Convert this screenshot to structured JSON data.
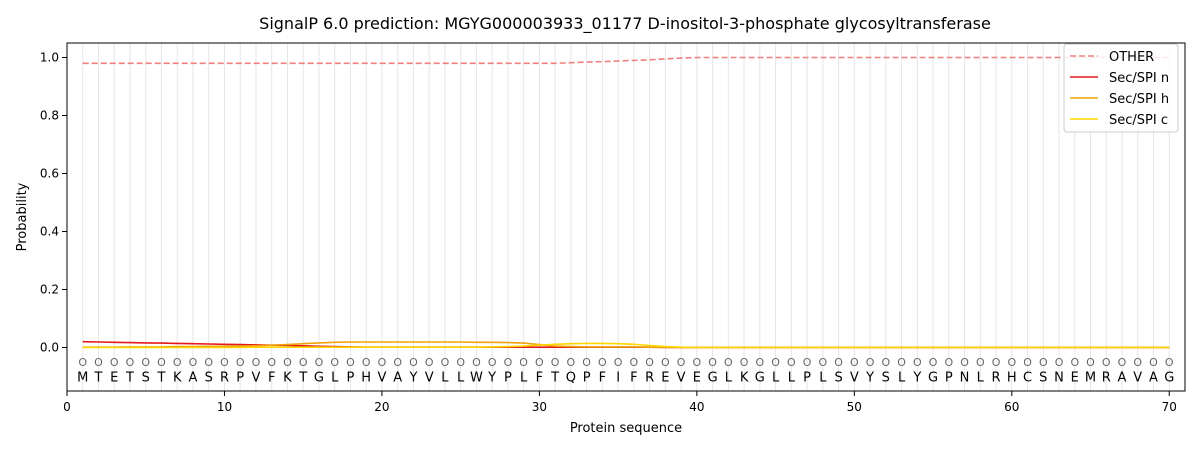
{
  "chart_data": {
    "type": "line",
    "title": "SignalP 6.0 prediction: MGYG000003933_01177 D-inositol-3-phosphate glycosyltransferase",
    "xlabel": "Protein sequence",
    "ylabel": "Probability",
    "xlim": [
      0,
      71
    ],
    "ylim": [
      -0.15,
      1.05
    ],
    "xticks": [
      0,
      10,
      20,
      30,
      40,
      50,
      60,
      70
    ],
    "yticks": [
      0.0,
      0.2,
      0.4,
      0.6,
      0.8,
      1.0
    ],
    "ytick_labels": [
      "0.0",
      "0.2",
      "0.4",
      "0.6",
      "0.8",
      "1.0"
    ],
    "grid": "vertical lines at each residue",
    "legend_position": "top-right",
    "sequence": [
      "M",
      "T",
      "E",
      "T",
      "S",
      "T",
      "K",
      "A",
      "S",
      "R",
      "P",
      "V",
      "F",
      "K",
      "T",
      "G",
      "L",
      "P",
      "H",
      "V",
      "A",
      "Y",
      "V",
      "L",
      "L",
      "W",
      "Y",
      "P",
      "L",
      "F",
      "T",
      "Q",
      "P",
      "F",
      "I",
      "F",
      "R",
      "E",
      "V",
      "E",
      "G",
      "L",
      "K",
      "G",
      "L",
      "L",
      "P",
      "L",
      "S",
      "V",
      "Y",
      "S",
      "L",
      "Y",
      "G",
      "P",
      "N",
      "L",
      "R",
      "H",
      "C",
      "S",
      "N",
      "E",
      "M",
      "R",
      "A",
      "V",
      "A",
      "G"
    ],
    "region_label": "O",
    "series": [
      {
        "name": "OTHER",
        "color": "#f08080",
        "dashed": true,
        "values": [
          0.98,
          0.98,
          0.98,
          0.98,
          0.98,
          0.98,
          0.98,
          0.98,
          0.98,
          0.98,
          0.98,
          0.98,
          0.98,
          0.98,
          0.98,
          0.98,
          0.98,
          0.98,
          0.98,
          0.98,
          0.98,
          0.98,
          0.98,
          0.98,
          0.98,
          0.98,
          0.98,
          0.98,
          0.98,
          0.98,
          0.98,
          0.982,
          0.984,
          0.986,
          0.988,
          0.99,
          0.992,
          0.995,
          0.998,
          1.0,
          1.0,
          1.0,
          1.0,
          1.0,
          1.0,
          1.0,
          1.0,
          1.0,
          1.0,
          1.0,
          1.0,
          1.0,
          1.0,
          1.0,
          1.0,
          1.0,
          1.0,
          1.0,
          1.0,
          1.0,
          1.0,
          1.0,
          1.0,
          1.0,
          1.0,
          1.0,
          1.0,
          1.0,
          1.0,
          1.0
        ]
      },
      {
        "name": "Sec/SPI n",
        "color": "#e31a1c",
        "dashed": false,
        "values": [
          0.02,
          0.019,
          0.018,
          0.017,
          0.016,
          0.015,
          0.014,
          0.013,
          0.012,
          0.011,
          0.01,
          0.009,
          0.008,
          0.007,
          0.006,
          0.004,
          0.003,
          0.002,
          0.001,
          0.001,
          0.001,
          0.001,
          0.001,
          0.001,
          0.001,
          0.001,
          0.001,
          0.001,
          0.001,
          0.001,
          0.001,
          0.001,
          0.001,
          0.001,
          0.001,
          0.001,
          0.001,
          0.0,
          0.0,
          0.0,
          0.0,
          0.0,
          0.0,
          0.0,
          0.0,
          0.0,
          0.0,
          0.0,
          0.0,
          0.0,
          0.0,
          0.0,
          0.0,
          0.0,
          0.0,
          0.0,
          0.0,
          0.0,
          0.0,
          0.0,
          0.0,
          0.0,
          0.0,
          0.0,
          0.0,
          0.0,
          0.0,
          0.0,
          0.0,
          0.0
        ]
      },
      {
        "name": "Sec/SPI h",
        "color": "#f0a30a",
        "dashed": false,
        "values": [
          0.001,
          0.001,
          0.001,
          0.002,
          0.002,
          0.002,
          0.003,
          0.003,
          0.004,
          0.004,
          0.005,
          0.006,
          0.008,
          0.01,
          0.013,
          0.016,
          0.018,
          0.019,
          0.019,
          0.019,
          0.019,
          0.019,
          0.019,
          0.019,
          0.019,
          0.018,
          0.018,
          0.017,
          0.015,
          0.01,
          0.005,
          0.003,
          0.002,
          0.002,
          0.002,
          0.002,
          0.001,
          0.001,
          0.0,
          0.0,
          0.0,
          0.0,
          0.0,
          0.0,
          0.0,
          0.0,
          0.0,
          0.0,
          0.0,
          0.0,
          0.0,
          0.0,
          0.0,
          0.0,
          0.0,
          0.0,
          0.0,
          0.0,
          0.0,
          0.0,
          0.0,
          0.0,
          0.0,
          0.0,
          0.0,
          0.0,
          0.0,
          0.0,
          0.0,
          0.0
        ]
      },
      {
        "name": "Sec/SPI c",
        "color": "#ffd700",
        "dashed": false,
        "values": [
          0.0,
          0.0,
          0.0,
          0.0,
          0.0,
          0.0,
          0.0,
          0.0,
          0.0,
          0.0,
          0.0,
          0.001,
          0.001,
          0.001,
          0.001,
          0.001,
          0.001,
          0.001,
          0.001,
          0.001,
          0.001,
          0.001,
          0.001,
          0.001,
          0.001,
          0.001,
          0.002,
          0.003,
          0.005,
          0.008,
          0.011,
          0.013,
          0.014,
          0.014,
          0.013,
          0.011,
          0.007,
          0.003,
          0.001,
          0.0,
          0.0,
          0.0,
          0.0,
          0.0,
          0.0,
          0.0,
          0.0,
          0.0,
          0.0,
          0.0,
          0.0,
          0.0,
          0.0,
          0.0,
          0.0,
          0.0,
          0.0,
          0.0,
          0.0,
          0.0,
          0.0,
          0.0,
          0.0,
          0.0,
          0.0,
          0.0,
          0.0,
          0.0,
          0.0,
          0.0
        ]
      }
    ]
  }
}
